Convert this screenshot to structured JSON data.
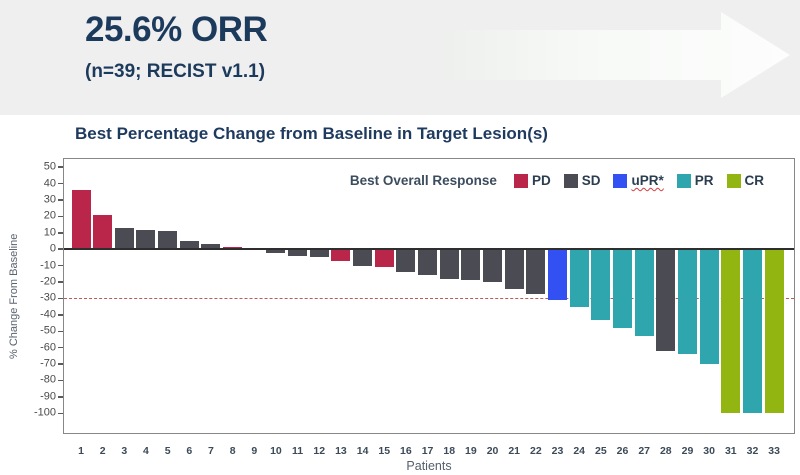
{
  "header": {
    "title": "25.6% ORR",
    "subtitle": "(n=39; RECIST v1.1)",
    "bg_color": "#efeff0",
    "text_color": "#1c3a5c",
    "arrow_icon": "arrow-right",
    "arrow_color": "#fafbfa"
  },
  "chart": {
    "title": "Best Percentage Change from Baseline in Target Lesion(s)",
    "legend_title": "Best Overall Response",
    "legend": [
      {
        "label": "PD",
        "color": "#ba2649"
      },
      {
        "label": "SD",
        "color": "#4b4b53"
      },
      {
        "label": "uPR*",
        "color": "#3351f3",
        "underline": "wavy-red"
      },
      {
        "label": "PR",
        "color": "#2fa6ad"
      },
      {
        "label": "CR",
        "color": "#93b512"
      }
    ]
  },
  "chart_data": {
    "type": "bar",
    "title": "Best Percentage Change from Baseline in Target Lesion(s)",
    "xlabel": "Patients",
    "ylabel": "% Change From Baseline",
    "categories": [
      "1",
      "2",
      "3",
      "4",
      "5",
      "6",
      "7",
      "8",
      "9",
      "10",
      "11",
      "12",
      "13",
      "14",
      "15",
      "16",
      "17",
      "18",
      "19",
      "20",
      "21",
      "22",
      "23",
      "24",
      "25",
      "26",
      "27",
      "28",
      "29",
      "30",
      "31",
      "32",
      "33"
    ],
    "values": [
      36,
      21,
      13,
      12,
      11,
      5,
      3,
      1.5,
      0,
      -2,
      -4,
      -5,
      -7,
      -10,
      -11,
      -14,
      -16,
      -18,
      -19,
      -20,
      -24,
      -27,
      -31,
      -35,
      -43,
      -48,
      -53,
      -62,
      -64,
      -70,
      -100,
      -100,
      -100
    ],
    "responses": [
      "PD",
      "PD",
      "SD",
      "SD",
      "SD",
      "SD",
      "SD",
      "PD",
      "SD",
      "SD",
      "SD",
      "SD",
      "PD",
      "SD",
      "PD",
      "SD",
      "SD",
      "SD",
      "SD",
      "SD",
      "SD",
      "SD",
      "uPR",
      "PR",
      "PR",
      "PR",
      "PR",
      "SD",
      "PR",
      "PR",
      "CR",
      "PR",
      "CR"
    ],
    "colors": {
      "PD": "#ba2649",
      "SD": "#4b4b53",
      "uPR": "#3351f3",
      "PR": "#2fa6ad",
      "CR": "#93b512"
    },
    "yticks": [
      50,
      40,
      30,
      20,
      10,
      0,
      -10,
      -20,
      -30,
      -40,
      -50,
      -60,
      -70,
      -80,
      -90,
      -100
    ],
    "ylim": [
      -112,
      55
    ],
    "reference_line": -30,
    "reference_line_color": "#b85c55",
    "zero_line_color": "#2e2e2e",
    "grid": false,
    "legend_position": "top-right-inside"
  }
}
